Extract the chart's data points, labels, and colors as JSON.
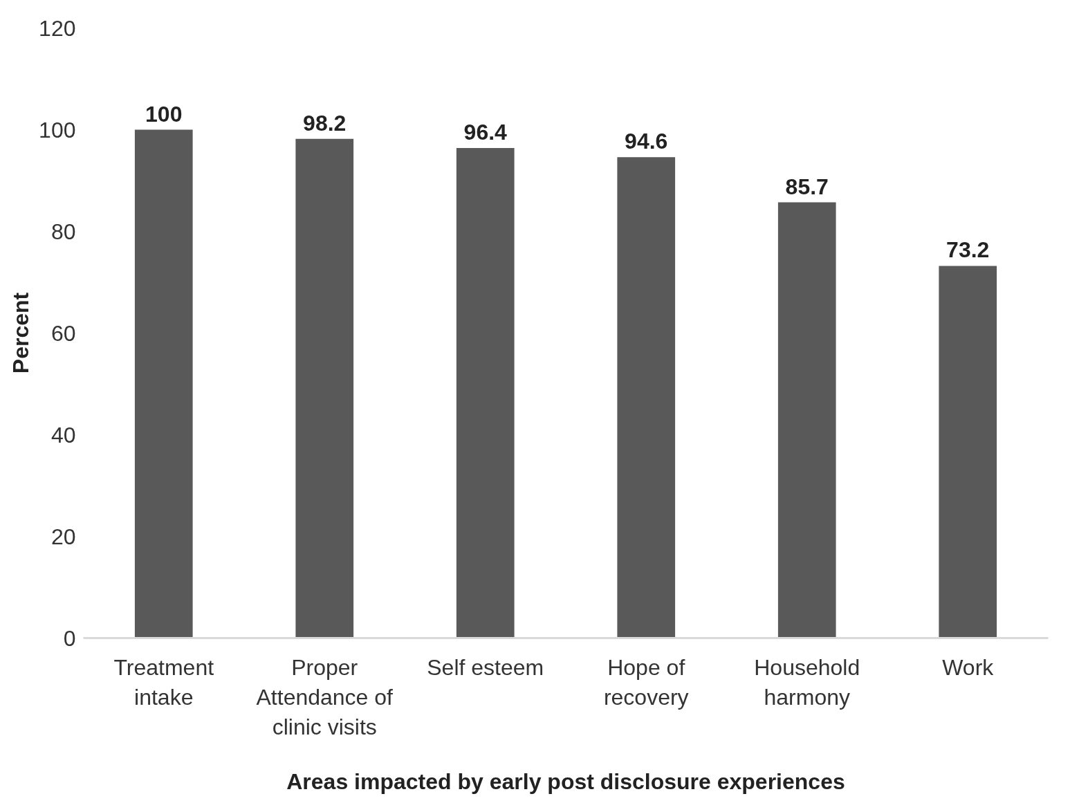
{
  "chart_data": {
    "type": "bar",
    "xlabel": "Areas impacted by early post disclosure experiences",
    "ylabel": "Percent",
    "categories": [
      "Treatment\nintake",
      "Proper\nAttendance of\nclinic visits",
      "Self esteem",
      "Hope of\nrecovery",
      "Household\nharmony",
      "Work"
    ],
    "values": [
      100,
      98.2,
      96.4,
      94.6,
      85.7,
      73.2
    ],
    "color": "#595959",
    "ylim": [
      0,
      120
    ],
    "yticks": [
      0,
      20,
      40,
      60,
      80,
      100,
      120
    ],
    "data_labels": true,
    "grid": false
  }
}
